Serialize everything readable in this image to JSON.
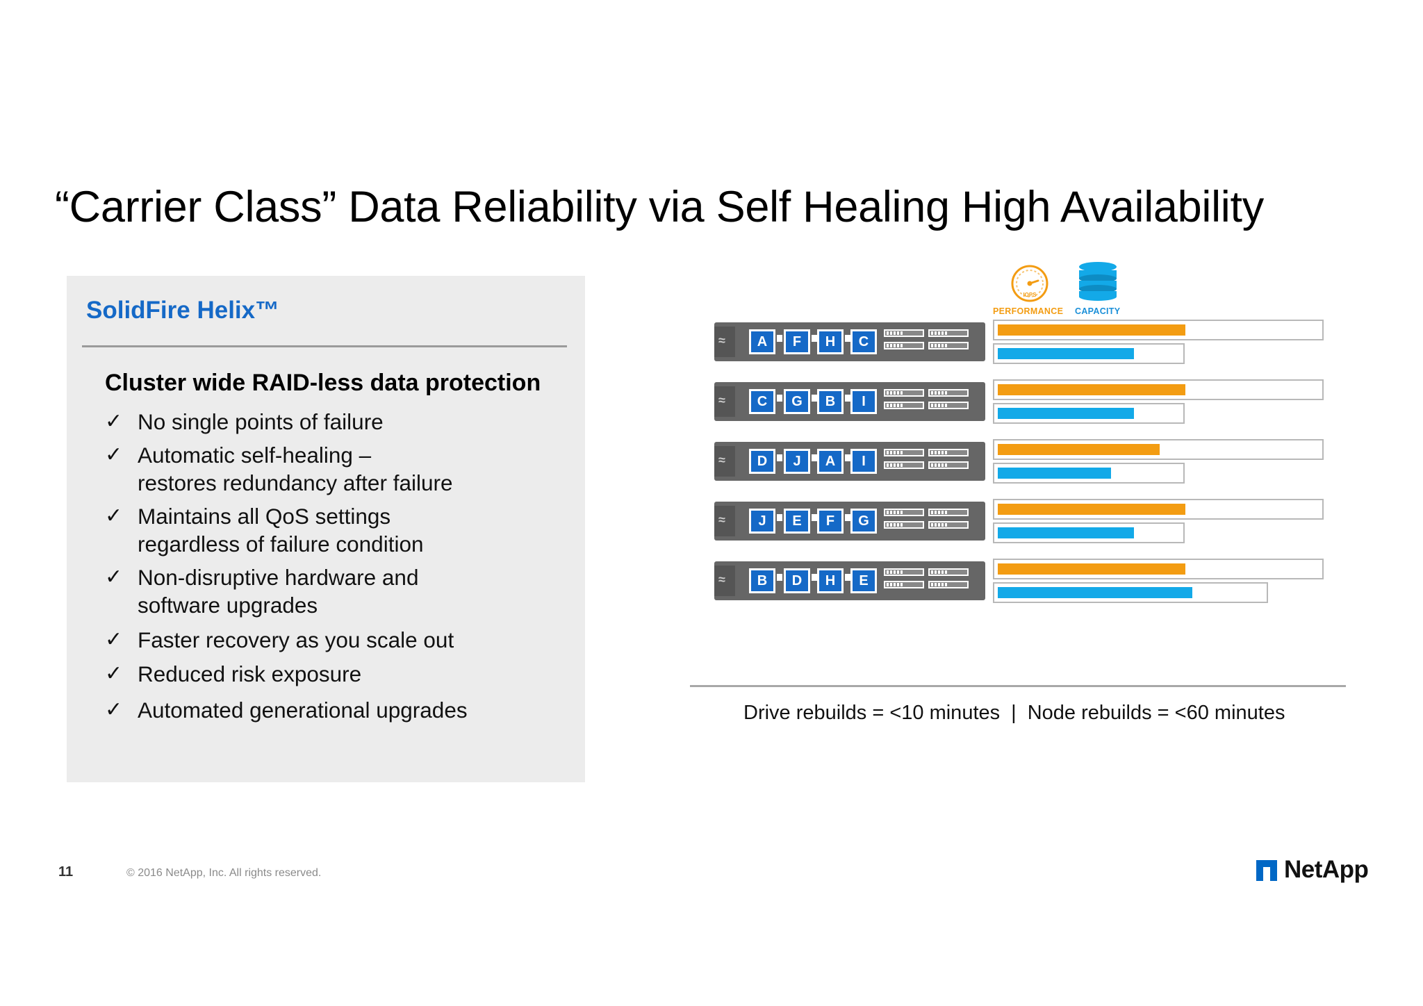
{
  "slide": {
    "title": "“Carrier Class” Data Reliability via Self Healing High Availability",
    "page_number": "11",
    "copyright": "© 2016 NetApp, Inc. All rights reserved.",
    "logo": "NetApp"
  },
  "panel": {
    "title": "SolidFire Helix™",
    "heading": "Cluster wide RAID-less data protection",
    "check_glyph": "✓",
    "bullets": [
      {
        "line1": "No single points of failure",
        "line2": ""
      },
      {
        "line1": "Automatic self-healing –",
        "line2": "restores redundancy after failure"
      },
      {
        "line1": "Maintains all QoS settings",
        "line2": "regardless of failure condition"
      },
      {
        "line1": "Non-disruptive hardware and",
        "line2": "software upgrades"
      },
      {
        "line1": "Faster recovery as you scale out",
        "line2": ""
      },
      {
        "line1": "Reduced risk exposure",
        "line2": ""
      },
      {
        "line1": "Automated generational upgrades",
        "line2": ""
      }
    ]
  },
  "diagram": {
    "legend": {
      "performance_label": "PERFORMANCE",
      "performance_icon": "gauge-icon",
      "performance_icon_text": "IOPS",
      "capacity_label": "CAPACITY",
      "capacity_icon": "database-icon"
    },
    "colors": {
      "performance": "#f39c12",
      "capacity": "#13a9e8",
      "drive": "#1569c7"
    },
    "nodes": [
      {
        "drives": [
          "A",
          "F",
          "H",
          "C"
        ],
        "performance": 0.58,
        "capacity": 0.42
      },
      {
        "drives": [
          "C",
          "G",
          "B",
          "I"
        ],
        "performance": 0.58,
        "capacity": 0.42
      },
      {
        "drives": [
          "D",
          "J",
          "A",
          "I"
        ],
        "performance": 0.5,
        "capacity": 0.35
      },
      {
        "drives": [
          "J",
          "E",
          "F",
          "G"
        ],
        "performance": 0.58,
        "capacity": 0.42
      },
      {
        "drives": [
          "B",
          "D",
          "H",
          "E"
        ],
        "performance": 0.58,
        "capacity": 0.6
      }
    ],
    "rebuild_drive": "Drive rebuilds = <10 minutes",
    "rebuild_separator": "|",
    "rebuild_node": "Node rebuilds = <60 minutes"
  }
}
